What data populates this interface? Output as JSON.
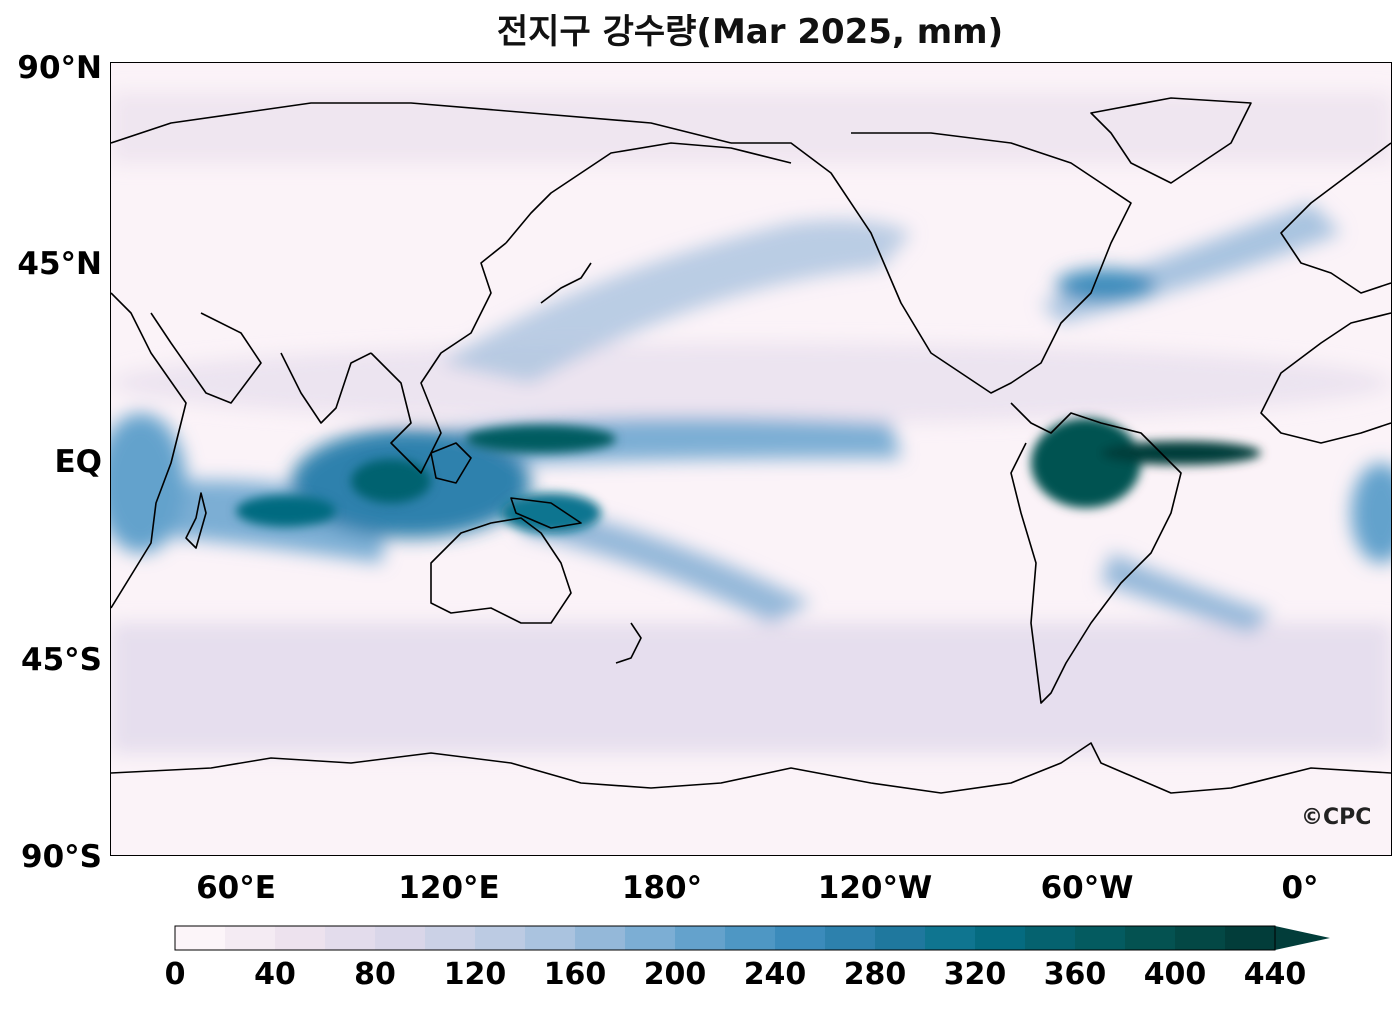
{
  "title": "전지구 강수량(Mar 2025, mm)",
  "y_axis_labels": [
    "90°N",
    "45°N",
    "EQ",
    "45°S",
    "90°S"
  ],
  "x_axis_labels": [
    "60°E",
    "120°E",
    "180°",
    "120°W",
    "60°W",
    "0°"
  ],
  "colorbar": {
    "tick_labels": [
      "0",
      "40",
      "80",
      "120",
      "160",
      "200",
      "240",
      "280",
      "320",
      "360",
      "400",
      "440"
    ],
    "colors": [
      "#fcf5f9",
      "#f4ebf3",
      "#ede2ee",
      "#e3dcec",
      "#d9d6e9",
      "#cbd1e6",
      "#bccbe3",
      "#aac3df",
      "#94b8d9",
      "#7caed4",
      "#64a2cc",
      "#4e97c4",
      "#3b8bbb",
      "#2d81ad",
      "#1f789e",
      "#0f7590",
      "#056b80",
      "#05626f",
      "#045b60",
      "#045251",
      "#034845",
      "#023d3a"
    ],
    "extend": "max"
  },
  "credit": "©CPC",
  "colors": {
    "background": "#ffffff",
    "ocean_base": "#fbf3f8",
    "coast": "#000000"
  }
}
